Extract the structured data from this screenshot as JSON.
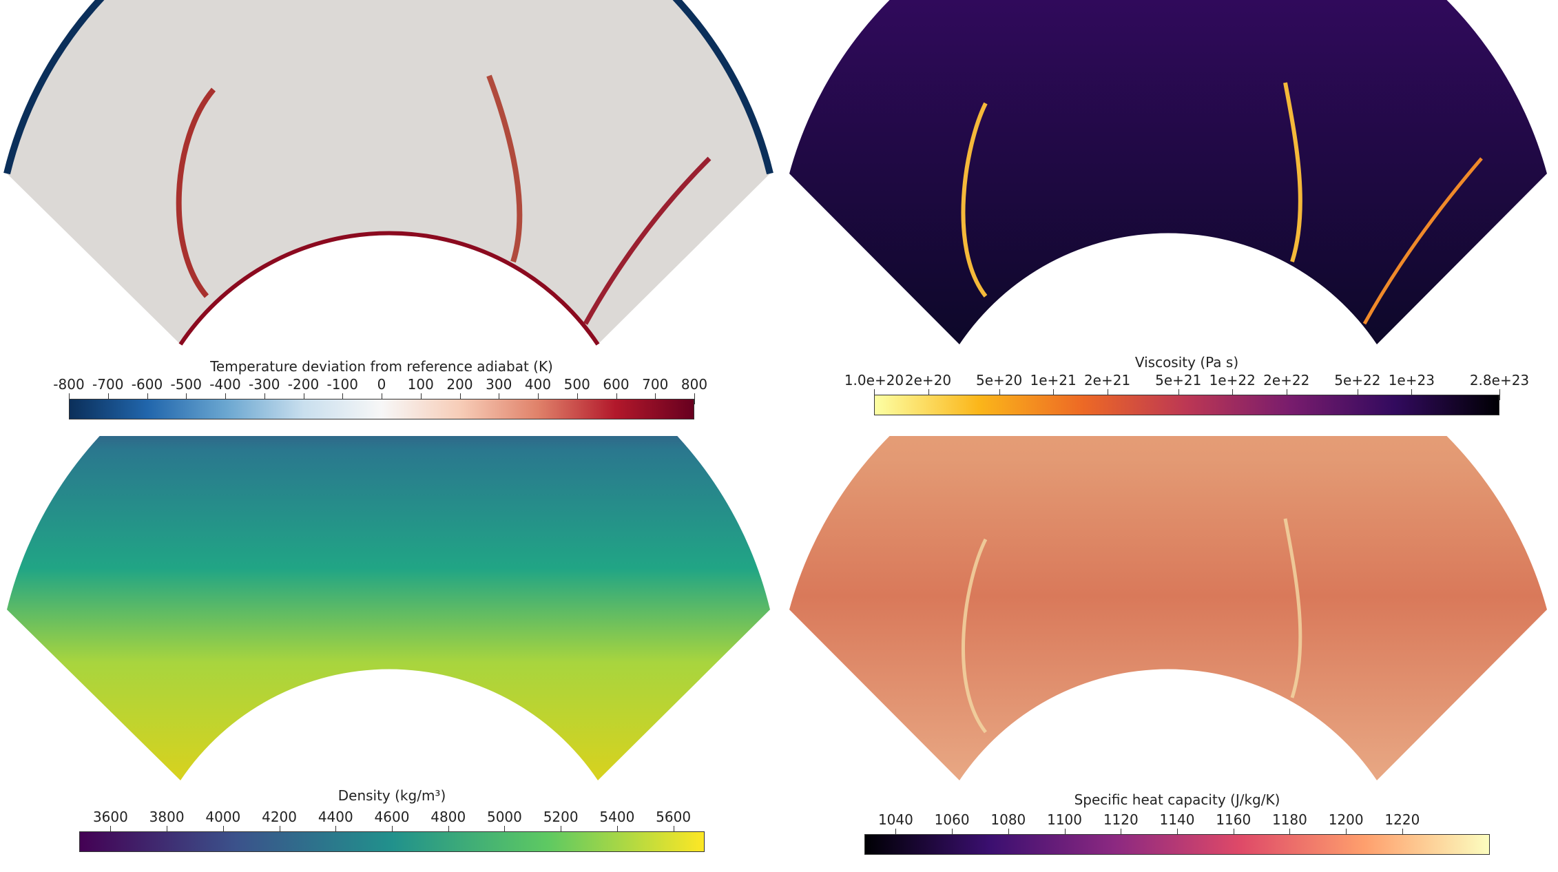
{
  "panels": [
    {
      "id": "temperature",
      "colorbar_title": "Temperature deviation from reference adiabat (K)",
      "ticks": [
        "-800",
        "-700",
        "-600",
        "-500",
        "-400",
        "-300",
        "-200",
        "-100",
        "0",
        "100",
        "200",
        "300",
        "400",
        "500",
        "600",
        "700",
        "800"
      ],
      "colors": [
        "#0b2f5a",
        "#2166ac",
        "#6aa6d0",
        "#c9dfee",
        "#f7f7f7",
        "#f7cdb8",
        "#e0826a",
        "#b2182b",
        "#67001f"
      ]
    },
    {
      "id": "viscosity",
      "colorbar_title": "Viscosity (Pa s)",
      "ticks": [
        "1.0e+20",
        "2e+20",
        "5e+20",
        "1e+21",
        "2e+21",
        "5e+21",
        "1e+22",
        "2e+22",
        "5e+22",
        "1e+23",
        "2.8e+23"
      ],
      "colors": [
        "#fcffa4",
        "#fbb61a",
        "#ed6925",
        "#bc3754",
        "#781c6d",
        "#320a5e",
        "#000004"
      ]
    },
    {
      "id": "density",
      "colorbar_title": "Density (kg/m³)",
      "ticks": [
        "3600",
        "3800",
        "4000",
        "4200",
        "4400",
        "4600",
        "4800",
        "5000",
        "5200",
        "5400",
        "5600"
      ],
      "colors": [
        "#440154",
        "#3b528b",
        "#21918c",
        "#5ec962",
        "#fde725"
      ]
    },
    {
      "id": "heat_capacity",
      "colorbar_title": "Specific heat capacity (J/kg/K)",
      "ticks": [
        "1040",
        "1060",
        "1080",
        "1100",
        "1120",
        "1140",
        "1160",
        "1180",
        "1200",
        "1220"
      ],
      "colors": [
        "#000004",
        "#3b0f70",
        "#8c2981",
        "#de4968",
        "#fe9f6d",
        "#fcfdbf"
      ]
    }
  ]
}
